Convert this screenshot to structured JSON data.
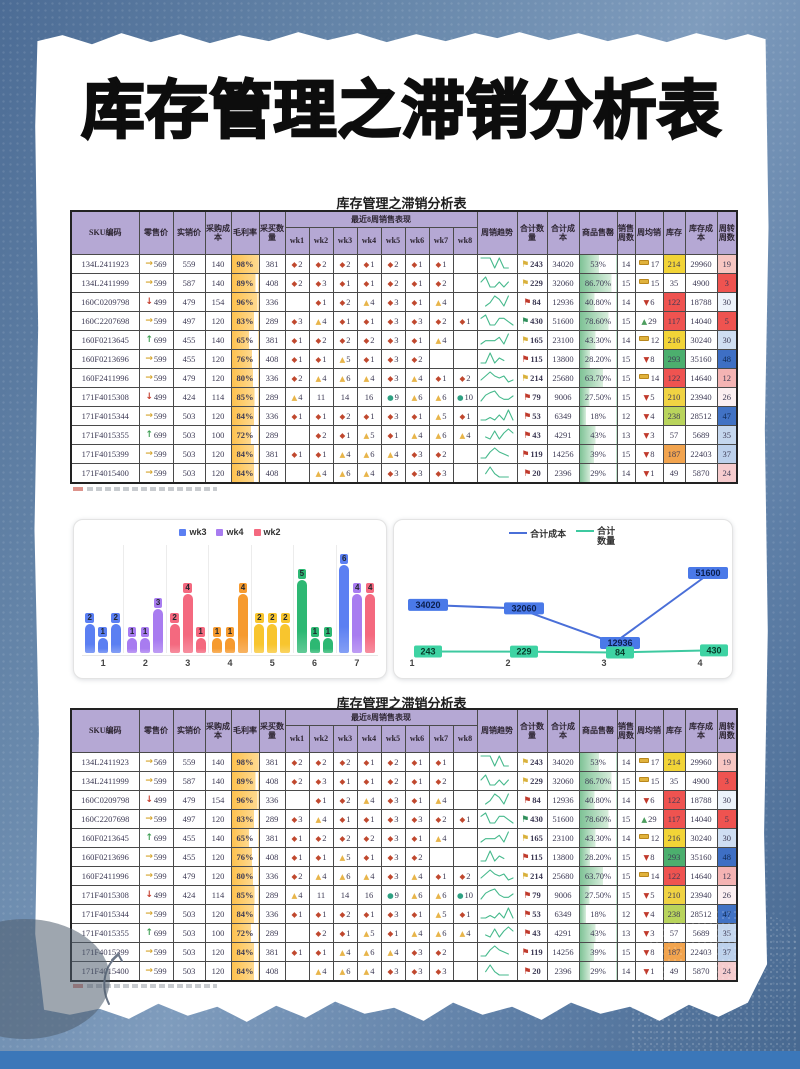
{
  "page": {
    "main_title": "库存管理之滞销分析表",
    "table_caption_top": "库存管理之滞销分析表",
    "table_caption_bottom": "库存管理之滞销分析表"
  },
  "table": {
    "headers": {
      "sku": "SKU编码",
      "retail": "零售价",
      "actual": "实销价",
      "cost": "采购成本",
      "margin": "毛利率",
      "qty": "采买数量",
      "band8wk": "最近8周销售表现",
      "weeks": [
        "wk1",
        "wk2",
        "wk3",
        "wk4",
        "wk5",
        "wk6",
        "wk7",
        "wk8"
      ],
      "trend": "周销趋势",
      "total_qty": "合计数量",
      "total_cost": "合计成本",
      "sellthrough": "商品售罄",
      "sales_weeks": "销售周数",
      "avg_weekly": "周均销",
      "stock": "库存",
      "stock_cost": "库存成本",
      "turnover": "周转周数"
    },
    "icon_colors": {
      "diamond": "#c0482e",
      "triangle": "#e8b54a",
      "circle": "#2fa183",
      "arrow_up": "#3f9e53",
      "arrow_flat": "#d6a62f",
      "arrow_down": "#c43d2b",
      "tri_up": "#4e9e5f",
      "tri_down": "#c0392b",
      "flag_yellow": "#d9b13b",
      "flag_red": "#c03a2c",
      "flag_green": "#2f8f5b",
      "sparkline": "#46b98c",
      "margin_bar": "#fec14d",
      "sell_bar": "#7cc194"
    },
    "rows": [
      {
        "sku": "134L2411923",
        "arrow": "flat",
        "retail": 569,
        "actual": 559,
        "cost": 140,
        "margin": "98%",
        "margin_pct": 98,
        "qty": 381,
        "weeks": [
          {
            "icon": "diamond",
            "v": 2
          },
          {
            "icon": "diamond",
            "v": 2
          },
          {
            "icon": "diamond",
            "v": 2
          },
          {
            "icon": "diamond",
            "v": 1
          },
          {
            "icon": "diamond",
            "v": 2
          },
          {
            "icon": "diamond",
            "v": 1
          },
          {
            "icon": "diamond",
            "v": 1
          },
          null
        ],
        "flag": "yellow",
        "total_qty": 243,
        "total_cost": 34020,
        "sell": "53%",
        "sell_pct": 53,
        "sales_weeks": 14,
        "avg_icon": "dash",
        "avg": 17,
        "stock": 214,
        "stock_bg": "#f2d437",
        "stock_cost": 29960,
        "turn": 19,
        "turn_bg": "#f7c6c2",
        "turn_fg": ""
      },
      {
        "sku": "134L2411999",
        "arrow": "flat",
        "retail": 599,
        "actual": 587,
        "cost": 140,
        "margin": "89%",
        "margin_pct": 89,
        "qty": 408,
        "weeks": [
          {
            "icon": "diamond",
            "v": 2
          },
          {
            "icon": "diamond",
            "v": 3
          },
          {
            "icon": "diamond",
            "v": 1
          },
          {
            "icon": "diamond",
            "v": 1
          },
          {
            "icon": "diamond",
            "v": 2
          },
          {
            "icon": "diamond",
            "v": 1
          },
          {
            "icon": "diamond",
            "v": 2
          },
          null
        ],
        "flag": "yellow",
        "total_qty": 229,
        "total_cost": 32060,
        "sell": "86.70%",
        "sell_pct": 86.7,
        "sales_weeks": 15,
        "avg_icon": "dash",
        "avg": 15,
        "stock": 35,
        "stock_bg": "",
        "stock_cost": 4900,
        "turn": 3,
        "turn_bg": "#ef5350",
        "turn_fg": ""
      },
      {
        "sku": "160C0209798",
        "arrow": "down",
        "retail": 499,
        "actual": 479,
        "cost": 154,
        "margin": "96%",
        "margin_pct": 96,
        "qty": 336,
        "weeks": [
          null,
          {
            "icon": "diamond",
            "v": 1
          },
          {
            "icon": "diamond",
            "v": 2
          },
          {
            "icon": "triangle",
            "v": 4
          },
          {
            "icon": "diamond",
            "v": 3
          },
          {
            "icon": "diamond",
            "v": 1
          },
          {
            "icon": "triangle",
            "v": 4
          },
          null
        ],
        "flag": "red",
        "total_qty": 84,
        "total_cost": 12936,
        "sell": "40.80%",
        "sell_pct": 40.8,
        "sales_weeks": 14,
        "avg_icon": "down",
        "avg": 6,
        "stock": 122,
        "stock_bg": "#ef5350",
        "stock_cost": 18788,
        "turn": 30,
        "turn_bg": "#edf2fa",
        "turn_fg": ""
      },
      {
        "sku": "160C2207698",
        "arrow": "flat",
        "retail": 599,
        "actual": 497,
        "cost": 120,
        "margin": "83%",
        "margin_pct": 83,
        "qty": 289,
        "weeks": [
          {
            "icon": "diamond",
            "v": 3
          },
          {
            "icon": "triangle",
            "v": 4
          },
          {
            "icon": "diamond",
            "v": 1
          },
          {
            "icon": "diamond",
            "v": 1
          },
          {
            "icon": "diamond",
            "v": 3
          },
          {
            "icon": "diamond",
            "v": 3
          },
          {
            "icon": "diamond",
            "v": 2
          },
          {
            "icon": "diamond",
            "v": 1
          }
        ],
        "flag": "green",
        "total_qty": 430,
        "total_cost": 51600,
        "sell": "78.60%",
        "sell_pct": 78.6,
        "sales_weeks": 15,
        "avg_icon": "up",
        "avg": 29,
        "stock": 117,
        "stock_bg": "#ef5350",
        "stock_cost": 14040,
        "turn": 5,
        "turn_bg": "#ef5350",
        "turn_fg": ""
      },
      {
        "sku": "160F0213645",
        "arrow": "up",
        "retail": 699,
        "actual": 455,
        "cost": 140,
        "margin": "65%",
        "margin_pct": 65,
        "qty": 381,
        "weeks": [
          {
            "icon": "diamond",
            "v": 1
          },
          {
            "icon": "diamond",
            "v": 2
          },
          {
            "icon": "diamond",
            "v": 2
          },
          {
            "icon": "diamond",
            "v": 2
          },
          {
            "icon": "diamond",
            "v": 3
          },
          {
            "icon": "diamond",
            "v": 1
          },
          {
            "icon": "triangle",
            "v": 4
          },
          null
        ],
        "flag": "yellow",
        "total_qty": 165,
        "total_cost": 23100,
        "sell": "43.30%",
        "sell_pct": 43.3,
        "sales_weeks": 14,
        "avg_icon": "dash",
        "avg": 12,
        "stock": 216,
        "stock_bg": "#f2d437",
        "stock_cost": 30240,
        "turn": 30,
        "turn_bg": "#cfdef2",
        "turn_fg": ""
      },
      {
        "sku": "160F0213696",
        "arrow": "flat",
        "retail": 599,
        "actual": 455,
        "cost": 120,
        "margin": "76%",
        "margin_pct": 76,
        "qty": 408,
        "weeks": [
          {
            "icon": "diamond",
            "v": 1
          },
          {
            "icon": "diamond",
            "v": 1
          },
          {
            "icon": "triangle",
            "v": 5
          },
          {
            "icon": "diamond",
            "v": 1
          },
          {
            "icon": "diamond",
            "v": 3
          },
          {
            "icon": "diamond",
            "v": 2
          },
          null,
          null
        ],
        "flag": "red",
        "total_qty": 115,
        "total_cost": 13800,
        "sell": "28.20%",
        "sell_pct": 28.2,
        "sales_weeks": 15,
        "avg_icon": "down",
        "avg": 8,
        "stock": 293,
        "stock_bg": "#4caf6e",
        "stock_cost": 35160,
        "turn": 48,
        "turn_bg": "#3e6fc4",
        "turn_fg": "#102a54"
      },
      {
        "sku": "160F2411996",
        "arrow": "flat",
        "retail": 599,
        "actual": 479,
        "cost": 120,
        "margin": "80%",
        "margin_pct": 80,
        "qty": 336,
        "weeks": [
          {
            "icon": "diamond",
            "v": 2
          },
          {
            "icon": "triangle",
            "v": 4
          },
          {
            "icon": "triangle",
            "v": 6
          },
          {
            "icon": "triangle",
            "v": 4
          },
          {
            "icon": "diamond",
            "v": 3
          },
          {
            "icon": "triangle",
            "v": 4
          },
          {
            "icon": "diamond",
            "v": 1
          },
          {
            "icon": "diamond",
            "v": 2
          }
        ],
        "flag": "yellow",
        "total_qty": 214,
        "total_cost": 25680,
        "sell": "63.70%",
        "sell_pct": 63.7,
        "sales_weeks": 15,
        "avg_icon": "dash",
        "avg": 14,
        "stock": 122,
        "stock_bg": "#ef5350",
        "stock_cost": 14640,
        "turn": 12,
        "turn_bg": "#f4b3b3",
        "turn_fg": ""
      },
      {
        "sku": "171F4015308",
        "arrow": "down",
        "retail": 499,
        "actual": 424,
        "cost": 114,
        "margin": "85%",
        "margin_pct": 85,
        "qty": 289,
        "weeks": [
          {
            "icon": "triangle",
            "v": 4
          },
          {
            "icon": "none",
            "v": 11
          },
          {
            "icon": "none",
            "v": 14
          },
          {
            "icon": "none",
            "v": 16
          },
          {
            "icon": "circle",
            "v": 9
          },
          {
            "icon": "triangle",
            "v": 6
          },
          {
            "icon": "triangle",
            "v": 6
          },
          {
            "icon": "circle",
            "v": 10
          }
        ],
        "flag": "red",
        "total_qty": 79,
        "total_cost": 9006,
        "sell": "27.50%",
        "sell_pct": 27.5,
        "sales_weeks": 15,
        "avg_icon": "down",
        "avg": 5,
        "stock": 210,
        "stock_bg": "#f0d343",
        "stock_cost": 23940,
        "turn": 26,
        "turn_bg": "#fbeff1",
        "turn_fg": ""
      },
      {
        "sku": "171F4015344",
        "arrow": "flat",
        "retail": 599,
        "actual": 503,
        "cost": 120,
        "margin": "84%",
        "margin_pct": 84,
        "qty": 336,
        "weeks": [
          {
            "icon": "diamond",
            "v": 1
          },
          {
            "icon": "diamond",
            "v": 1
          },
          {
            "icon": "diamond",
            "v": 2
          },
          {
            "icon": "diamond",
            "v": 1
          },
          {
            "icon": "diamond",
            "v": 3
          },
          {
            "icon": "diamond",
            "v": 1
          },
          {
            "icon": "triangle",
            "v": 5
          },
          {
            "icon": "diamond",
            "v": 1
          }
        ],
        "flag": "red",
        "total_qty": 53,
        "total_cost": 6349,
        "sell": "18%",
        "sell_pct": 18,
        "sales_weeks": 12,
        "avg_icon": "down",
        "avg": 4,
        "stock": 238,
        "stock_bg": "#b9d45c",
        "stock_cost": 28512,
        "turn": 47,
        "turn_bg": "#4172c4",
        "turn_fg": "#102a54"
      },
      {
        "sku": "171F4015355",
        "arrow": "up",
        "retail": 699,
        "actual": 503,
        "cost": 100,
        "margin": "72%",
        "margin_pct": 72,
        "qty": 289,
        "weeks": [
          null,
          {
            "icon": "diamond",
            "v": 2
          },
          {
            "icon": "diamond",
            "v": 1
          },
          {
            "icon": "triangle",
            "v": 5
          },
          {
            "icon": "diamond",
            "v": 1
          },
          {
            "icon": "triangle",
            "v": 4
          },
          {
            "icon": "triangle",
            "v": 6
          },
          {
            "icon": "triangle",
            "v": 4
          }
        ],
        "flag": "red",
        "total_qty": 43,
        "total_cost": 4291,
        "sell": "43%",
        "sell_pct": 43,
        "sales_weeks": 13,
        "avg_icon": "down",
        "avg": 3,
        "stock": 57,
        "stock_bg": "",
        "stock_cost": 5689,
        "turn": 35,
        "turn_bg": "#c5d7ee",
        "turn_fg": ""
      },
      {
        "sku": "171F4015399",
        "arrow": "flat",
        "retail": 599,
        "actual": 503,
        "cost": 120,
        "margin": "84%",
        "margin_pct": 84,
        "qty": 381,
        "weeks": [
          {
            "icon": "diamond",
            "v": 1
          },
          {
            "icon": "diamond",
            "v": 1
          },
          {
            "icon": "triangle",
            "v": 4
          },
          {
            "icon": "triangle",
            "v": 6
          },
          {
            "icon": "triangle",
            "v": 4
          },
          {
            "icon": "diamond",
            "v": 3
          },
          {
            "icon": "diamond",
            "v": 2
          },
          null
        ],
        "flag": "red",
        "total_qty": 119,
        "total_cost": 14256,
        "sell": "39%",
        "sell_pct": 39,
        "sales_weeks": 15,
        "avg_icon": "down",
        "avg": 8,
        "stock": 187,
        "stock_bg": "#f2a44e",
        "stock_cost": 22403,
        "turn": 37,
        "turn_bg": "#bdd1ec",
        "turn_fg": ""
      },
      {
        "sku": "171F4015400",
        "arrow": "flat",
        "retail": 599,
        "actual": 503,
        "cost": 120,
        "margin": "84%",
        "margin_pct": 84,
        "qty": 408,
        "weeks": [
          null,
          {
            "icon": "triangle",
            "v": 4
          },
          {
            "icon": "triangle",
            "v": 6
          },
          {
            "icon": "triangle",
            "v": 4
          },
          {
            "icon": "diamond",
            "v": 3
          },
          {
            "icon": "diamond",
            "v": 3
          },
          {
            "icon": "diamond",
            "v": 3
          },
          null
        ],
        "flag": "red",
        "total_qty": 20,
        "total_cost": 2396,
        "sell": "29%",
        "sell_pct": 29,
        "sales_weeks": 14,
        "avg_icon": "down",
        "avg": 1,
        "stock": 49,
        "stock_bg": "",
        "stock_cost": 5870,
        "turn": 24,
        "turn_bg": "#f6ccce",
        "turn_fg": ""
      }
    ]
  },
  "chart_data": [
    {
      "type": "bar",
      "title": "",
      "legend": [
        "wk3",
        "wk4",
        "wk2"
      ],
      "legend_colors": [
        "#5b7ff2",
        "#a87cf0",
        "#f4697f"
      ],
      "categories": [
        "1",
        "2",
        "3",
        "4",
        "5",
        "6",
        "7"
      ],
      "groups": [
        {
          "colors": [
            "#5b7ff2",
            "#5b7ff2",
            "#5b7ff2"
          ],
          "values": [
            2,
            1,
            2
          ]
        },
        {
          "colors": [
            "#a87cf0",
            "#a87cf0",
            "#a87cf0"
          ],
          "values": [
            1,
            1,
            3
          ]
        },
        {
          "colors": [
            "#f4697f",
            "#f4697f",
            "#f4697f"
          ],
          "values": [
            2,
            4,
            1
          ]
        },
        {
          "colors": [
            "#f69a2e",
            "#f69a2e",
            "#f69a2e"
          ],
          "values": [
            1,
            1,
            4
          ]
        },
        {
          "colors": [
            "#f8c52e",
            "#f8c52e",
            "#f8c52e"
          ],
          "values": [
            2,
            2,
            2
          ]
        },
        {
          "colors": [
            "#2db873",
            "#2db873",
            "#2db873"
          ],
          "values": [
            5,
            1,
            1
          ]
        },
        {
          "colors": [
            "#5b7ff2",
            "#a87cf0",
            "#f4697f"
          ],
          "values": [
            6,
            4,
            4
          ]
        }
      ],
      "ylim": [
        0,
        6
      ],
      "grid": "vertical-separators",
      "legend_position": "top"
    },
    {
      "type": "line",
      "title": "",
      "x": [
        "1",
        "2",
        "3",
        "4"
      ],
      "series": [
        {
          "name": "合计成本",
          "color": "#4a6fd8",
          "label_bg": "#4a79e8",
          "label_fg": "#0b1f4e",
          "values": [
            34020,
            32060,
            12936,
            51600
          ]
        },
        {
          "name": "合计数量",
          "color": "#3ec9a0",
          "label_bg": "#3ed3a3",
          "label_fg": "#073b2a",
          "values": [
            243,
            229,
            84,
            430
          ]
        }
      ],
      "legend_position": "top",
      "grid": "off"
    }
  ]
}
